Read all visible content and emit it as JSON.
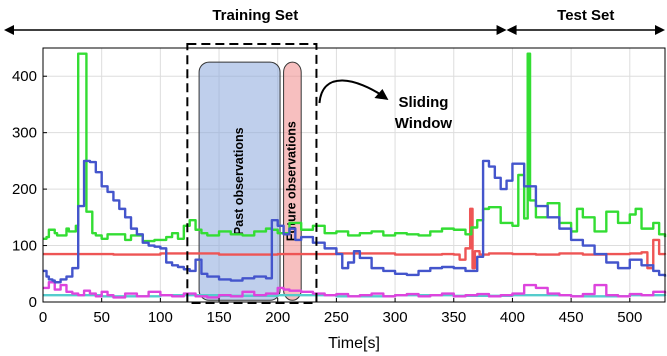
{
  "chart_data": {
    "type": "line",
    "title": "",
    "xlabel": "Time[s]",
    "ylabel": "",
    "xlim": [
      0,
      530
    ],
    "ylim": [
      0,
      450
    ],
    "x_ticks": [
      0,
      50,
      100,
      150,
      200,
      250,
      300,
      350,
      400,
      450,
      500
    ],
    "y_ticks": [
      0,
      100,
      200,
      300,
      400
    ],
    "grid": true,
    "colors": {
      "green": "#33dd33",
      "blue": "#4455cc",
      "red": "#ee5555",
      "magenta": "#dd44dd",
      "cyan": "#55cccc",
      "past_fill": "#8aa8dd",
      "future_fill": "#f08a8a"
    },
    "spans": [
      {
        "label": "Training Set",
        "from": 0,
        "to": 395
      },
      {
        "label": "Test Set",
        "from": 395,
        "to": 530
      }
    ],
    "sliding_window": {
      "from": 123,
      "to": 233,
      "label_line1": "Sliding",
      "label_line2": "Window"
    },
    "regions": [
      {
        "label": "Past observations",
        "from": 133,
        "to": 202,
        "y_from": 3,
        "y_to": 425,
        "color": "past_fill"
      },
      {
        "label": "Future observations",
        "from": 205,
        "to": 220,
        "y_from": 3,
        "y_to": 425,
        "color": "future_fill"
      }
    ],
    "series": [
      {
        "color": "green",
        "x": [
          0,
          3,
          5,
          10,
          12,
          20,
          22,
          28,
          30,
          34,
          37,
          42,
          45,
          50,
          55,
          70,
          75,
          85,
          95,
          105,
          110,
          115,
          120,
          125,
          130,
          135,
          140,
          150,
          160,
          170,
          180,
          190,
          195,
          200,
          210,
          220,
          230,
          240,
          250,
          260,
          270,
          280,
          290,
          300,
          310,
          320,
          330,
          340,
          350,
          360,
          365,
          370,
          375,
          380,
          390,
          400,
          405,
          410,
          413,
          415,
          420,
          430,
          440,
          450,
          455,
          460,
          470,
          480,
          490,
          500,
          505,
          510,
          520,
          525,
          530
        ],
        "y": [
          112,
          115,
          128,
          122,
          118,
          130,
          125,
          135,
          440,
          440,
          160,
          122,
          118,
          112,
          120,
          110,
          118,
          108,
          110,
          115,
          122,
          112,
          135,
          145,
          128,
          122,
          118,
          125,
          120,
          118,
          125,
          130,
          128,
          122,
          140,
          128,
          135,
          122,
          125,
          118,
          122,
          125,
          118,
          122,
          120,
          118,
          125,
          130,
          128,
          120,
          132,
          145,
          165,
          168,
          140,
          135,
          225,
          148,
          440,
          180,
          150,
          175,
          140,
          125,
          165,
          150,
          125,
          160,
          140,
          155,
          165,
          130,
          140,
          120,
          115
        ]
      },
      {
        "color": "blue",
        "x": [
          0,
          3,
          5,
          8,
          10,
          15,
          20,
          25,
          30,
          35,
          38,
          40,
          45,
          50,
          55,
          60,
          65,
          70,
          75,
          80,
          85,
          90,
          95,
          100,
          105,
          110,
          115,
          120,
          125,
          130,
          135,
          140,
          150,
          160,
          170,
          180,
          190,
          195,
          200,
          205,
          210,
          215,
          220,
          230,
          240,
          250,
          255,
          260,
          265,
          270,
          280,
          290,
          300,
          310,
          320,
          330,
          340,
          350,
          360,
          370,
          375,
          380,
          385,
          390,
          395,
          400,
          410,
          420,
          430,
          440,
          450,
          460,
          470,
          480,
          490,
          500,
          510,
          520,
          525,
          530
        ],
        "y": [
          55,
          45,
          40,
          38,
          35,
          40,
          45,
          60,
          170,
          250,
          250,
          248,
          230,
          205,
          195,
          180,
          165,
          150,
          130,
          120,
          105,
          100,
          98,
          95,
          70,
          65,
          62,
          58,
          55,
          75,
          50,
          45,
          40,
          38,
          42,
          45,
          42,
          145,
          135,
          120,
          130,
          110,
          115,
          105,
          95,
          85,
          60,
          70,
          90,
          78,
          60,
          55,
          50,
          48,
          55,
          60,
          62,
          60,
          55,
          80,
          250,
          240,
          220,
          200,
          215,
          245,
          205,
          170,
          150,
          130,
          110,
          100,
          85,
          70,
          60,
          75,
          65,
          55,
          48,
          45
        ]
      },
      {
        "color": "red",
        "x": [
          0,
          30,
          60,
          100,
          150,
          200,
          230,
          250,
          300,
          340,
          350,
          355,
          360,
          364,
          366,
          368,
          372,
          380,
          400,
          420,
          440,
          460,
          480,
          500,
          510,
          515,
          520,
          525,
          530
        ],
        "y": [
          85,
          85,
          84,
          86,
          84,
          85,
          85,
          86,
          84,
          85,
          84,
          75,
          95,
          165,
          60,
          90,
          84,
          86,
          85,
          84,
          86,
          84,
          85,
          86,
          88,
          60,
          110,
          85,
          84
        ]
      },
      {
        "color": "magenta",
        "x": [
          0,
          5,
          10,
          15,
          20,
          25,
          30,
          35,
          40,
          45,
          50,
          55,
          60,
          70,
          80,
          90,
          100,
          110,
          120,
          130,
          140,
          150,
          160,
          170,
          180,
          190,
          200,
          205,
          210,
          220,
          230,
          240,
          250,
          260,
          270,
          280,
          290,
          300,
          310,
          320,
          330,
          340,
          350,
          360,
          370,
          380,
          390,
          400,
          410,
          420,
          430,
          440,
          450,
          460,
          470,
          480,
          490,
          500,
          510,
          520,
          530
        ],
        "y": [
          25,
          35,
          22,
          30,
          18,
          15,
          12,
          20,
          15,
          10,
          18,
          12,
          8,
          15,
          10,
          18,
          12,
          10,
          15,
          10,
          8,
          12,
          10,
          18,
          12,
          15,
          25,
          22,
          20,
          18,
          15,
          12,
          14,
          10,
          12,
          15,
          10,
          12,
          14,
          10,
          12,
          15,
          10,
          12,
          14,
          10,
          12,
          15,
          30,
          25,
          15,
          12,
          10,
          14,
          30,
          12,
          10,
          14,
          12,
          18,
          15
        ]
      },
      {
        "color": "cyan",
        "x": [
          0,
          50,
          100,
          150,
          200,
          250,
          300,
          350,
          400,
          450,
          500,
          530
        ],
        "y": [
          12,
          10,
          12,
          11,
          12,
          10,
          12,
          11,
          12,
          10,
          12,
          11
        ]
      }
    ]
  }
}
